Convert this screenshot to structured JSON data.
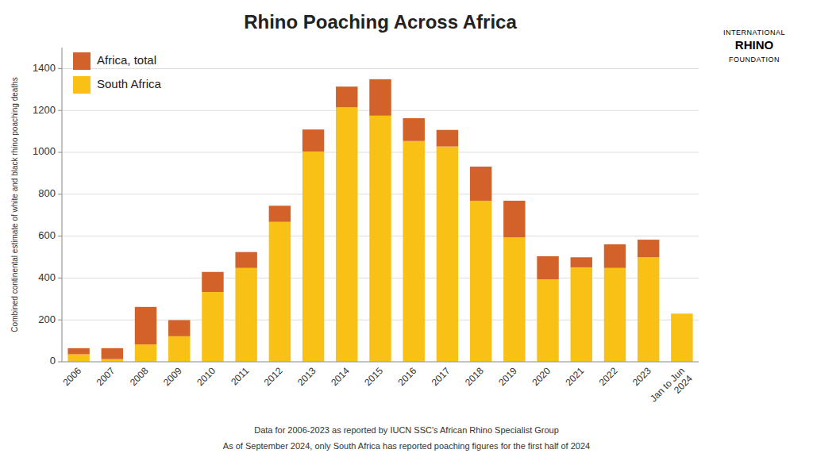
{
  "chart_data": {
    "type": "bar",
    "stacked": true,
    "title": "Rhino Poaching Across Africa",
    "y_label": "Combined continental estimate of white and black rhino poaching deaths",
    "categories": [
      "2006",
      "2007",
      "2008",
      "2009",
      "2010",
      "2011",
      "2012",
      "2013",
      "2014",
      "2015",
      "2016",
      "2017",
      "2018",
      "2019",
      "2020",
      "2021",
      "2022",
      "2023",
      "Jan to Jun\n2024"
    ],
    "series": [
      {
        "name": "South Africa",
        "color": "#F9C116",
        "values": [
          36,
          13,
          83,
          122,
          333,
          448,
          668,
          1004,
          1215,
          1175,
          1054,
          1028,
          769,
          594,
          394,
          451,
          448,
          499,
          230
        ]
      },
      {
        "name": "Africa, total",
        "color": "#D2622A",
        "values": [
          29,
          52,
          179,
          77,
          96,
          76,
          77,
          105,
          99,
          174,
          109,
          79,
          163,
          175,
          110,
          48,
          113,
          84,
          0
        ]
      }
    ],
    "ylim": [
      0,
      1500
    ],
    "yticks": [
      0,
      200,
      400,
      600,
      800,
      1000,
      1200,
      1400
    ],
    "grid": true,
    "legend": "upper left",
    "annotations": [
      "Data for 2006-2023 as reported by IUCN SSC's African Rhino Specialist Group",
      "As of September 2024, only South Africa has reported poaching figures for the first half of 2024",
      "INTERNATIONAL",
      "RHINO",
      "FOUNDATION"
    ]
  }
}
